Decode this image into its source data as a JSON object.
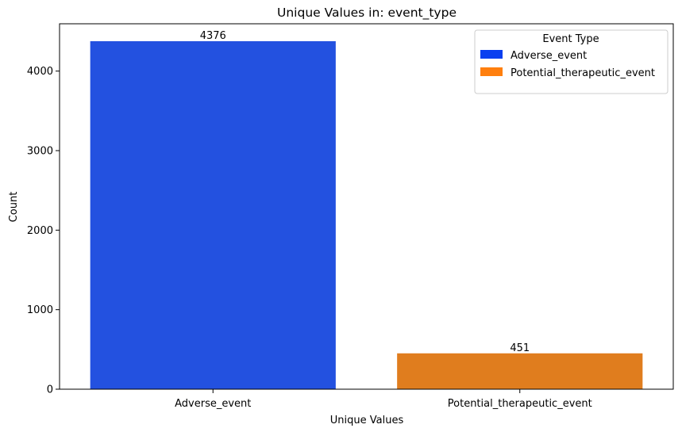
{
  "chart_data": {
    "type": "bar",
    "title": "Unique Values in: event_type",
    "xlabel": "Unique Values",
    "ylabel": "Count",
    "categories": [
      "Adverse_event",
      "Potential_therapeutic_event"
    ],
    "values": [
      4376,
      451
    ],
    "data_labels": [
      "4376",
      "451"
    ],
    "bar_colors": [
      "#2351e0",
      "#e07d1e"
    ],
    "ylim": [
      0,
      4595
    ],
    "yticks": [
      0,
      1000,
      2000,
      3000,
      4000
    ],
    "ytick_labels": [
      "0",
      "1000",
      "2000",
      "3000",
      "4000"
    ],
    "grid": false,
    "legend": {
      "title": "Event Type",
      "placement": "top-right",
      "entries": [
        {
          "label": "Adverse_event",
          "color": "#0a3ff0"
        },
        {
          "label": "Potential_therapeutic_event",
          "color": "#ff7f0e"
        }
      ]
    }
  }
}
